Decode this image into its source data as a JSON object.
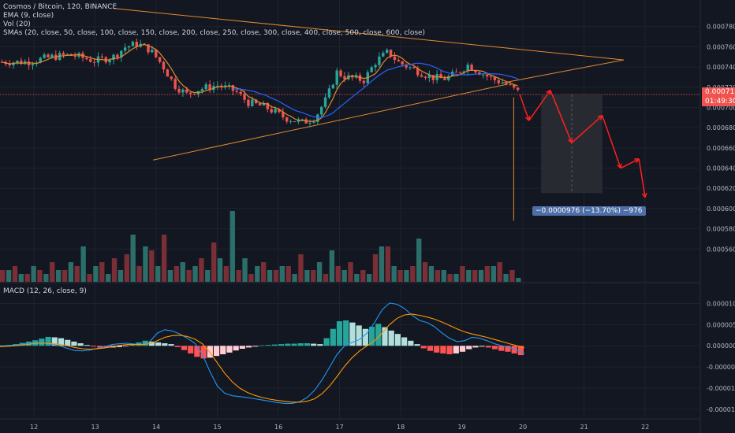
{
  "legend": {
    "title": "Cosmos / Bitcoin, 120, BINANCE",
    "ema": "EMA (9, close)",
    "vol": "Vol (20)",
    "smas": "SMAs (20, close, 50, close, 100, close, 150, close, 200, close, 250, close, 300, close, 400, close, 500, close, 600, close)",
    "macd": "MACD (12, 26, close, 9)"
  },
  "price_tag": {
    "price": "0.0007128",
    "countdown": "01:49:30"
  },
  "measure_label": "−0.0000976 (−13.70%) −976",
  "colors": {
    "background": "#131722",
    "up": "#26a69a",
    "down": "#ef5350",
    "vol_up": "#2b6e6a",
    "vol_down": "#7a2e35",
    "ema": "#e08a2e",
    "sma": "#2962ff",
    "trendline": "#e08a2e",
    "projection": "#ff1f1f",
    "price_line": "#ef5350",
    "measure_label_bg": "#4e6ea8",
    "macd_line": "#2196f3",
    "signal_line": "#ff9800",
    "hist_up_strong": "#26a69a",
    "hist_up_weak": "#b2dfdb",
    "hist_down_strong": "#ff5252",
    "hist_down_weak": "#ffcdd2"
  },
  "chart_data": [
    {
      "type": "candlestick",
      "title": "Cosmos / Bitcoin, 120, BINANCE",
      "x_ticks": [
        "12",
        "13",
        "14",
        "15",
        "16",
        "17",
        "18",
        "19",
        "20",
        "21",
        "22"
      ],
      "y_ticks": [
        "0.0007800",
        "0.0007600",
        "0.0007400",
        "0.0007200",
        "0.0007000",
        "0.0006800",
        "0.0006600",
        "0.0006400",
        "0.0006200",
        "0.0006000",
        "0.0005800",
        "0.0005600"
      ],
      "ylim": [
        0.00054,
        0.0008
      ],
      "current_price": 0.0007128,
      "close_path": [
        [
          11.6,
          0.000745
        ],
        [
          11.9,
          0.000745
        ],
        [
          12.3,
          0.00075
        ],
        [
          12.6,
          0.000752
        ],
        [
          13.0,
          0.000746
        ],
        [
          13.3,
          0.00075
        ],
        [
          13.5,
          0.00076
        ],
        [
          13.7,
          0.000763
        ],
        [
          13.9,
          0.000757
        ],
        [
          14.1,
          0.000742
        ],
        [
          14.3,
          0.000722
        ],
        [
          14.5,
          0.000713
        ],
        [
          14.7,
          0.000718
        ],
        [
          15.0,
          0.000722
        ],
        [
          15.3,
          0.000716
        ],
        [
          15.5,
          0.000705
        ],
        [
          15.8,
          0.0007
        ],
        [
          16.1,
          0.00069
        ],
        [
          16.4,
          0.000685
        ],
        [
          16.6,
          0.00069
        ],
        [
          16.8,
          0.00071
        ],
        [
          16.95,
          0.000735
        ],
        [
          17.1,
          0.00073
        ],
        [
          17.4,
          0.000727
        ],
        [
          17.6,
          0.000746
        ],
        [
          17.8,
          0.000755
        ],
        [
          17.95,
          0.000745
        ],
        [
          18.2,
          0.000738
        ],
        [
          18.5,
          0.00073
        ],
        [
          18.7,
          0.000728
        ],
        [
          18.9,
          0.000733
        ],
        [
          19.1,
          0.000742
        ],
        [
          19.3,
          0.000735
        ],
        [
          19.5,
          0.000728
        ],
        [
          19.7,
          0.000724
        ],
        [
          19.95,
          0.000714
        ]
      ],
      "projection": [
        [
          19.95,
          0.0007128
        ],
        [
          20.1,
          0.000687
        ],
        [
          20.45,
          0.000717
        ],
        [
          20.8,
          0.000665
        ],
        [
          21.3,
          0.000692
        ],
        [
          21.6,
          0.00064
        ],
        [
          21.9,
          0.000649
        ],
        [
          22.0,
          0.000611
        ]
      ],
      "trendlines": {
        "upper": [
          [
            13.3,
            0.000798
          ],
          [
            21.65,
            0.000747
          ]
        ],
        "lower": [
          [
            13.95,
            0.000648
          ],
          [
            19.75,
            0.000723
          ]
        ],
        "converge_upper": [
          [
            19.65,
            0.000724
          ],
          [
            21.65,
            0.000747
          ]
        ]
      },
      "measure": {
        "x_from": 20.3,
        "x_to": 21.3,
        "y_top": 0.0007128,
        "y_bottom": 0.0006152,
        "change": -9.76e-05,
        "percent": -13.7,
        "ticks": -976
      }
    },
    {
      "type": "bar",
      "title": "Vol (20)",
      "note": "volume histogram, relative units",
      "values_up": [
        3,
        2,
        4,
        2,
        3,
        5,
        9,
        4,
        2,
        3,
        12,
        9,
        4,
        3,
        5,
        4,
        3,
        6,
        18,
        6,
        4,
        3,
        4,
        2,
        3,
        5,
        8,
        3,
        2,
        2,
        9,
        4,
        3,
        11,
        4,
        3,
        2,
        3,
        3,
        4,
        2,
        1
      ],
      "values_down": [
        3,
        4,
        2,
        3,
        5,
        3,
        4,
        2,
        5,
        6,
        7,
        4,
        8,
        12,
        4,
        3,
        6,
        10,
        4,
        3,
        2,
        5,
        3,
        4,
        7,
        3,
        2,
        4,
        5,
        3,
        7,
        9,
        3,
        4,
        5,
        3,
        2,
        4,
        3,
        4,
        5,
        3
      ]
    },
    {
      "type": "bar",
      "title": "MACD (12, 26, close, 9)",
      "y_ticks": [
        "0.0000100",
        "0.0000050",
        "0.0000000",
        "-0.0000050",
        "-0.0000100",
        "-0.0000150"
      ],
      "ylim": [
        -1.65e-05,
        1.25e-05
      ],
      "histogram": [
        1e-07,
        2e-07,
        4e-07,
        7e-07,
        1e-06,
        1.3e-06,
        1.7e-06,
        2.1e-06,
        2e-06,
        1.8e-06,
        1.4e-06,
        1e-06,
        6e-07,
        2e-07,
        -2e-07,
        -4e-07,
        -5e-07,
        -4e-07,
        -3e-07,
        -1e-07,
        3e-07,
        8e-07,
        1.2e-06,
        1e-06,
        8e-07,
        6e-07,
        4e-07,
        -3e-07,
        -1e-06,
        -1.8e-06,
        -2.6e-06,
        -3e-06,
        -2.8e-06,
        -2.4e-06,
        -2e-06,
        -1.6e-06,
        -1.1e-06,
        -7e-07,
        -4e-07,
        -2e-07,
        1e-07,
        2e-07,
        3e-07,
        4e-07,
        5e-07,
        5e-07,
        6e-07,
        6e-07,
        5e-07,
        4e-07,
        1.8e-06,
        4e-06,
        5.8e-06,
        6e-06,
        5.5e-06,
        4.8e-06,
        4e-06,
        4.5e-06,
        5.2e-06,
        4.4e-06,
        3.6e-06,
        2.8e-06,
        2e-06,
        1.2e-06,
        4e-07,
        -6e-07,
        -1.2e-06,
        -1.6e-06,
        -1.8e-06,
        -2e-06,
        -1.8e-06,
        -1.4e-06,
        -8e-07,
        -4e-07,
        -2e-07,
        -4e-07,
        -8e-07,
        -1.2e-06,
        -1.4e-06,
        -1.8e-06,
        -2.2e-06
      ],
      "macd_line": [
        -1e-07,
        0.0,
        2e-07,
        4e-07,
        7e-07,
        8e-07,
        6e-07,
        3e-07,
        0.0,
        -6e-07,
        -1.1e-06,
        -1.2e-06,
        -1e-06,
        -6e-07,
        -2e-07,
        3e-07,
        5e-07,
        6e-07,
        4e-07,
        2e-07,
        1e-06,
        3e-06,
        3.8e-06,
        3.5e-06,
        2.8e-06,
        1.8e-06,
        6e-07,
        -2e-06,
        -6e-06,
        -9.5e-06,
        -1.12e-05,
        -1.18e-05,
        -1.2e-05,
        -1.22e-05,
        -1.25e-05,
        -1.28e-05,
        -1.31e-05,
        -1.34e-05,
        -1.36e-05,
        -1.36e-05,
        -1.32e-05,
        -1.22e-05,
        -1.05e-05,
        -8e-06,
        -5e-06,
        -2e-06,
        0.0,
        8e-07,
        1.5e-06,
        3e-06,
        5.5e-06,
        8.5e-06,
        1.01e-05,
        9.8e-06,
        8.8e-06,
        7.2e-06,
        6e-06,
        5.5e-06,
        4.5e-06,
        3e-06,
        1.8e-06,
        1e-06,
        1.2e-06,
        2e-06,
        1.8e-06,
        1.2e-06,
        5e-07,
        0.0,
        -4e-07,
        -1e-06,
        -1.8e-06
      ],
      "signal_line": [
        -2e-07,
        -1e-07,
        0.0,
        2e-07,
        4e-07,
        6e-07,
        6e-07,
        5e-07,
        3e-07,
        0.0,
        -4e-07,
        -7e-07,
        -8e-07,
        -7e-07,
        -5e-07,
        -2e-07,
        1e-07,
        3e-07,
        3e-07,
        3e-07,
        5e-07,
        1.2e-06,
        2e-06,
        2.4e-06,
        2.5e-06,
        2.2e-06,
        1.6e-06,
        5e-07,
        -1.5e-06,
        -4e-06,
        -6.5e-06,
        -8.5e-06,
        -1e-05,
        -1.1e-05,
        -1.17e-05,
        -1.22e-05,
        -1.26e-05,
        -1.29e-05,
        -1.31e-05,
        -1.33e-05,
        -1.33e-05,
        -1.31e-05,
        -1.25e-05,
        -1.13e-05,
        -9.5e-06,
        -7.2e-06,
        -4.8e-06,
        -2.8e-06,
        -1.2e-06,
        0.0,
        1.2e-06,
        3e-06,
        5e-06,
        6.5e-06,
        7.3e-06,
        7.5e-06,
        7.2e-06,
        6.8e-06,
        6.3e-06,
        5.6e-06,
        4.8e-06,
        4e-06,
        3.3e-06,
        2.8e-06,
        2.4e-06,
        2e-06,
        1.5e-06,
        1e-06,
        5e-07,
        0.0,
        -5e-07
      ]
    }
  ]
}
